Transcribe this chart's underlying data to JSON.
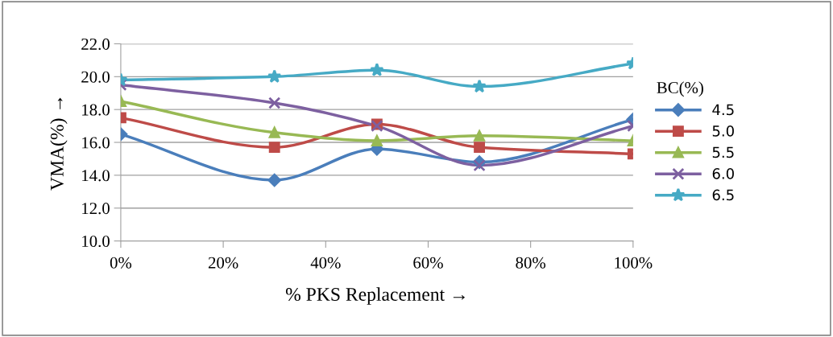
{
  "chart_data": {
    "type": "line",
    "xlabel": "% PKS Replacement →",
    "ylabel": "VMA(%) →",
    "legend_title": "BC(%)",
    "x": [
      0,
      30,
      50,
      70,
      100
    ],
    "series": [
      {
        "name": "4.5",
        "color": "#4a7ebb",
        "marker": "diamond",
        "values": [
          16.5,
          13.7,
          15.6,
          14.8,
          17.4
        ]
      },
      {
        "name": "5.0",
        "color": "#be4b48",
        "marker": "square",
        "values": [
          17.5,
          15.7,
          17.1,
          15.7,
          15.3
        ]
      },
      {
        "name": "5.5",
        "color": "#98b954",
        "marker": "triangle",
        "values": [
          18.5,
          16.6,
          16.1,
          16.4,
          16.1
        ]
      },
      {
        "name": "6.0",
        "color": "#7d60a0",
        "marker": "cross",
        "values": [
          19.5,
          18.4,
          17.0,
          14.6,
          17.0
        ]
      },
      {
        "name": "6.5",
        "color": "#46aac5",
        "marker": "star",
        "values": [
          19.8,
          20.0,
          20.4,
          19.4,
          20.8
        ]
      }
    ],
    "xlim": [
      0,
      100
    ],
    "xticks": [
      {
        "value": 0,
        "label": "0%"
      },
      {
        "value": 20,
        "label": "20%"
      },
      {
        "value": 40,
        "label": "40%"
      },
      {
        "value": 60,
        "label": "60%"
      },
      {
        "value": 80,
        "label": "80%"
      },
      {
        "value": 100,
        "label": "100%"
      }
    ],
    "ylim": [
      10,
      22
    ],
    "yticks": [
      {
        "value": 10,
        "label": "10.0"
      },
      {
        "value": 12,
        "label": "12.0"
      },
      {
        "value": 14,
        "label": "14.0"
      },
      {
        "value": 16,
        "label": "16.0"
      },
      {
        "value": 18,
        "label": "18.0"
      },
      {
        "value": 20,
        "label": "20.0"
      },
      {
        "value": 22,
        "label": "22.0"
      }
    ],
    "grid": "y",
    "legend": "right",
    "line_style": "solid"
  }
}
